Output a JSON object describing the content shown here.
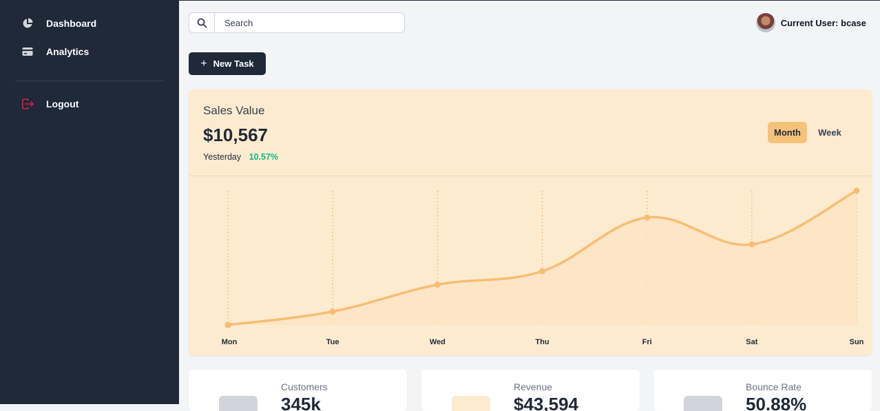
{
  "sidebar": {
    "items": [
      {
        "label": "Dashboard",
        "icon": "pie-chart-icon"
      },
      {
        "label": "Analytics",
        "icon": "credit-card-icon"
      }
    ],
    "logout": {
      "label": "Logout",
      "icon": "logout-icon"
    }
  },
  "search": {
    "placeholder": "Search"
  },
  "user": {
    "label": "Current User: bcase"
  },
  "actions": {
    "new_task_label": "New Task"
  },
  "sales": {
    "title": "Sales Value",
    "value": "$10,567",
    "period_label": "Yesterday",
    "change": "10.57%",
    "toggle": [
      {
        "label": "Month",
        "active": true
      },
      {
        "label": "Week",
        "active": false
      }
    ]
  },
  "chart_data": {
    "type": "area",
    "categories": [
      "Mon",
      "Tue",
      "Wed",
      "Thu",
      "Fri",
      "Sat",
      "Sun"
    ],
    "values": [
      0,
      10,
      30,
      40,
      80,
      60,
      100
    ],
    "ylim": [
      0,
      100
    ],
    "grid": "vertical-dotted",
    "colors": {
      "line": "#f6bd72",
      "fill": "#fde4c4",
      "grid": "#f6bd72"
    }
  },
  "stats": [
    {
      "label": "Customers",
      "value": "345k",
      "icon_color": "#d1d5db"
    },
    {
      "label": "Revenue",
      "value": "$43,594",
      "icon_color": "#fdebd0"
    },
    {
      "label": "Bounce Rate",
      "value": "50.88%",
      "icon_color": "#d1d5db"
    }
  ]
}
